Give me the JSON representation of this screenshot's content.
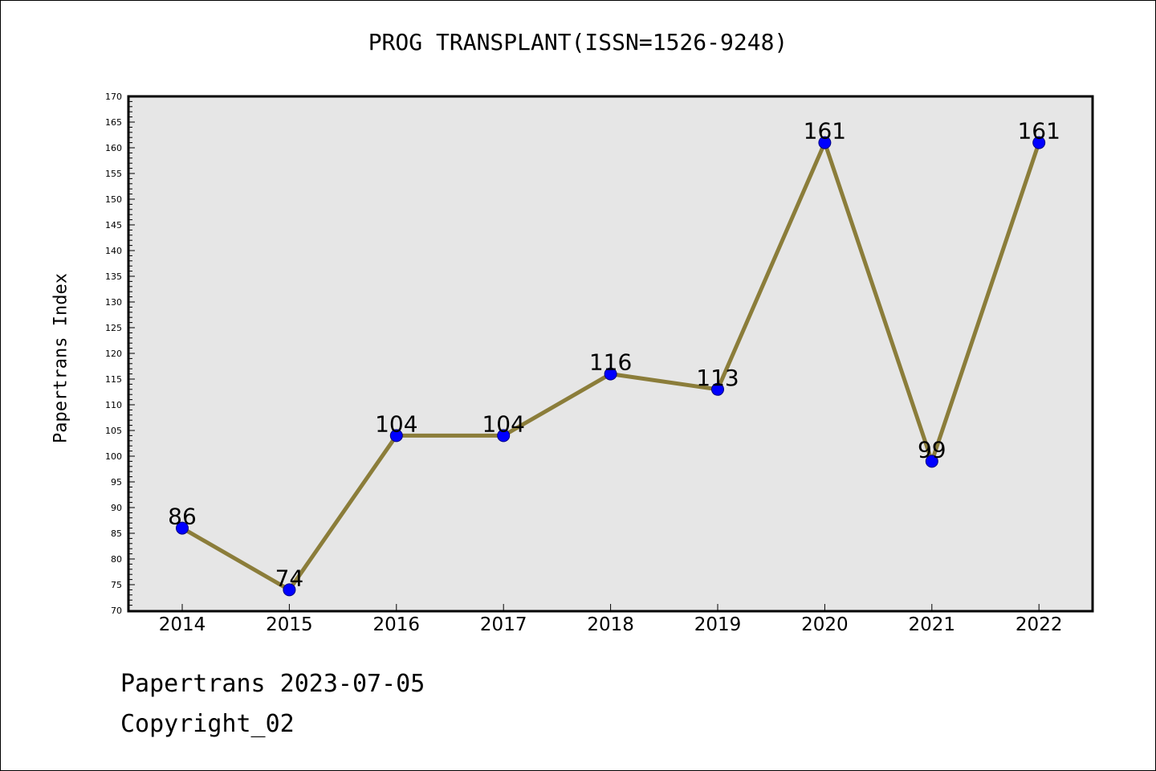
{
  "chart_data": {
    "type": "line",
    "title": "PROG TRANSPLANT(ISSN=1526-9248)",
    "xlabel": "",
    "ylabel": "Papertrans Index",
    "categories": [
      "2014",
      "2015",
      "2016",
      "2017",
      "2018",
      "2019",
      "2020",
      "2021",
      "2022"
    ],
    "series": [
      {
        "values": [
          86,
          74,
          104,
          104,
          116,
          113,
          161,
          99,
          161
        ]
      }
    ],
    "ylim": [
      70,
      170
    ],
    "ytick_step": 5,
    "data_labels": true,
    "grid": false,
    "colors": {
      "line": "#8b7d3a",
      "marker": "#0000ff",
      "marker_edge": "#000080",
      "plot_background": "#e6e6e6"
    }
  },
  "footer": {
    "date_text": "Papertrans 2023-07-05",
    "copyright_text": "Copyright_02"
  }
}
